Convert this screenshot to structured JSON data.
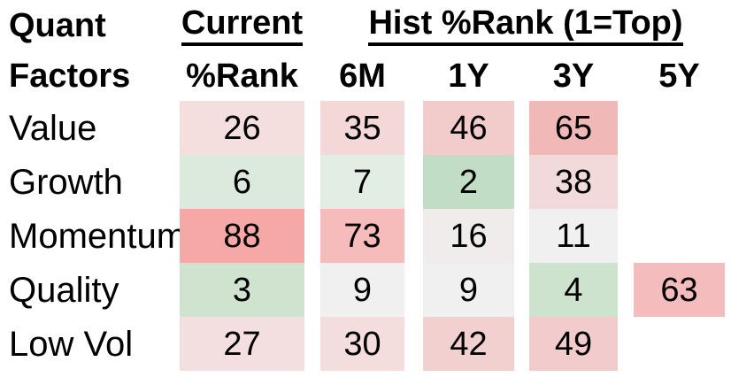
{
  "header": {
    "title_line1": "Quant",
    "title_line2": "Factors",
    "current_group": "Current",
    "hist_group": "Hist %Rank (1=Top)"
  },
  "columns": [
    "%Rank",
    "6M",
    "1Y",
    "3Y",
    "5Y"
  ],
  "rows": [
    {
      "label": "Value",
      "cells": [
        {
          "value": "26",
          "color": "#f4dede"
        },
        {
          "value": "35",
          "color": "#f4d8d8"
        },
        {
          "value": "46",
          "color": "#f2cbcb"
        },
        {
          "value": "65",
          "color": "#f0b9b8"
        },
        null
      ]
    },
    {
      "label": "Growth",
      "cells": [
        {
          "value": "6",
          "color": "#dceadd"
        },
        {
          "value": "7",
          "color": "#e2eee4"
        },
        {
          "value": "2",
          "color": "#c1ddc5"
        },
        {
          "value": "38",
          "color": "#f2dada"
        },
        null
      ]
    },
    {
      "label": "Momentum",
      "cells": [
        {
          "value": "88",
          "color": "#f5a8a5"
        },
        {
          "value": "73",
          "color": "#f6bcbb"
        },
        {
          "value": "16",
          "color": "#f1ecec"
        },
        {
          "value": "11",
          "color": "#f0f0f1"
        },
        null
      ]
    },
    {
      "label": "Quality",
      "cells": [
        {
          "value": "3",
          "color": "#cfe3cf"
        },
        {
          "value": "9",
          "color": "#f0f0f0"
        },
        {
          "value": "9",
          "color": "#f0f0f0"
        },
        {
          "value": "4",
          "color": "#cde3cd"
        },
        {
          "value": "63",
          "color": "#f4bcbc"
        }
      ]
    },
    {
      "label": "Low Vol",
      "cells": [
        {
          "value": "27",
          "color": "#f3dfdf"
        },
        {
          "value": "30",
          "color": "#f4dddd"
        },
        {
          "value": "42",
          "color": "#f3d0d0"
        },
        {
          "value": "49",
          "color": "#f2cccc"
        },
        null
      ]
    }
  ],
  "chart_data": {
    "type": "heatmap",
    "title": "Quant Factors %Rank",
    "row_labels": [
      "Value",
      "Growth",
      "Momentum",
      "Quality",
      "Low Vol"
    ],
    "col_labels": [
      "Current %Rank",
      "6M",
      "1Y",
      "3Y",
      "5Y"
    ],
    "values": [
      [
        26,
        35,
        46,
        65,
        null
      ],
      [
        6,
        7,
        2,
        38,
        null
      ],
      [
        88,
        73,
        16,
        11,
        null
      ],
      [
        3,
        9,
        9,
        4,
        63
      ],
      [
        27,
        30,
        42,
        49,
        null
      ]
    ],
    "scale_note": "1=Top; low values shaded green, high values shaded red, mid ~10-16 near white",
    "color_scale": {
      "low": "#c1ddc5",
      "mid": "#f0f0f0",
      "high": "#f5a8a5"
    },
    "legend_position": "none",
    "grid": false
  }
}
